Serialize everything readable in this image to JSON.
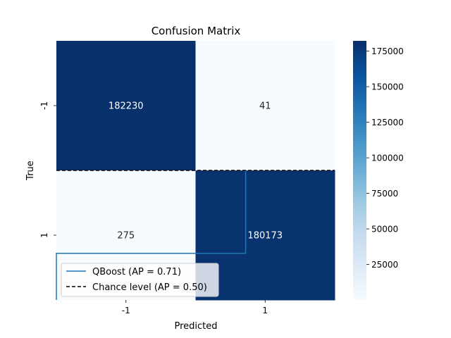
{
  "chart_data": {
    "type": "heatmap",
    "title": "Confusion Matrix",
    "xlabel": "Predicted",
    "ylabel": "True",
    "x_categories": [
      "-1",
      "1"
    ],
    "y_categories": [
      "-1",
      "1"
    ],
    "matrix": [
      [
        182230,
        41
      ],
      [
        275,
        180173
      ]
    ],
    "colormap": "Blues",
    "colorbar": {
      "min": 41,
      "max": 182230,
      "ticks": [
        25000,
        50000,
        75000,
        100000,
        125000,
        150000,
        175000
      ],
      "tick_labels": [
        "25000",
        "50000",
        "75000",
        "100000",
        "125000",
        "150000",
        "175000"
      ]
    },
    "overlay_lines": [
      {
        "name": "QBoost (AP = 0.71)",
        "color": "#1f77b4",
        "style": "solid",
        "x": [
          0.0,
          0.0,
          0.68,
          0.68
        ],
        "y": [
          0.0,
          0.18,
          0.18,
          0.5
        ]
      },
      {
        "name": "Chance level (AP = 0.50)",
        "color": "#000000",
        "style": "dashed",
        "x": [
          0.0,
          1.0
        ],
        "y": [
          0.5,
          0.5
        ]
      }
    ],
    "legend": {
      "position": "lower-left",
      "entries": [
        "QBoost (AP = 0.71)",
        "Chance level (AP = 0.50)"
      ]
    },
    "colors": {
      "dark": "#08306b",
      "light": "#f7fbff",
      "qboost": "#1f77b4",
      "chance": "#000000"
    }
  }
}
